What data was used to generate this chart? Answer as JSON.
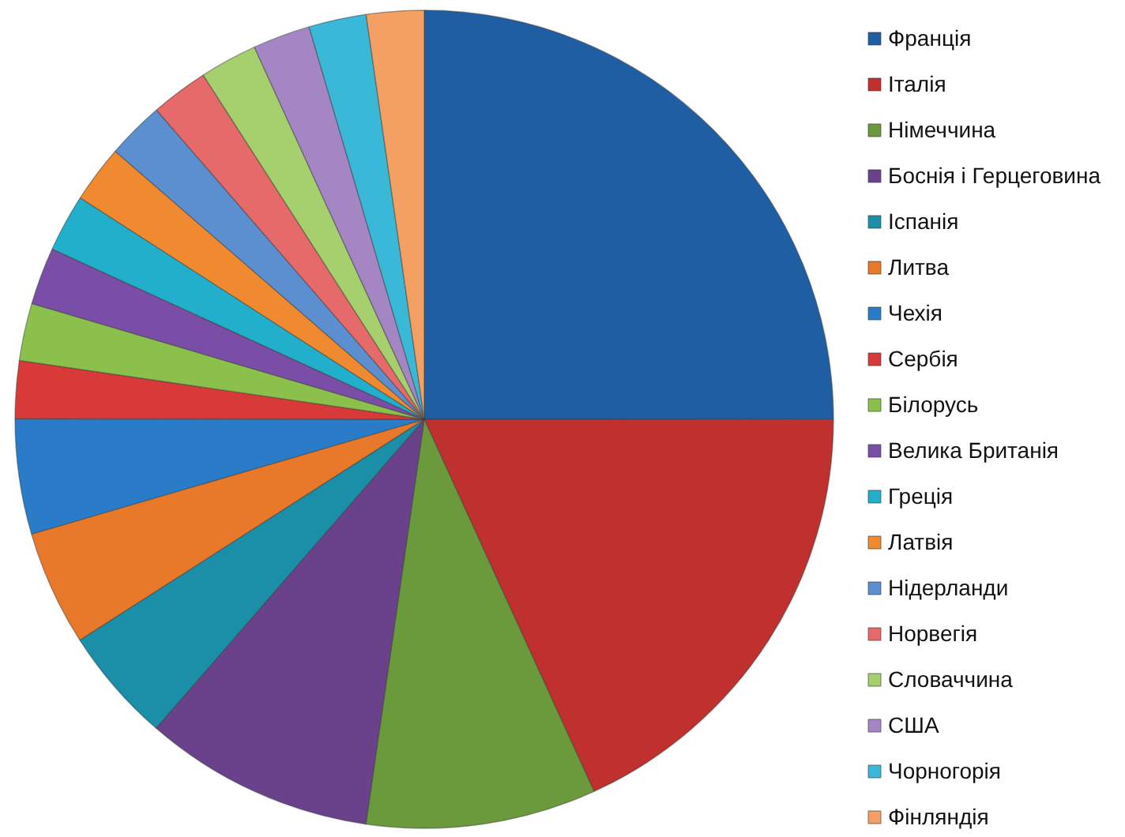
{
  "chart_data": {
    "type": "pie",
    "categories": [
      "Франція",
      "Італія",
      "Німеччина",
      "Боснія і Герцеговина",
      "Іспанія",
      "Литва",
      "Чехія",
      "Сербія",
      "Білорусь",
      "Велика Британія",
      "Греція",
      "Латвія",
      "Нідерланди",
      "Норвегія",
      "Словаччина",
      "США",
      "Чорногорія",
      "Фінляндія"
    ],
    "values": [
      25,
      18.18,
      9.09,
      9.09,
      4.55,
      4.55,
      4.55,
      2.27,
      2.27,
      2.27,
      2.27,
      2.27,
      2.27,
      2.27,
      2.27,
      2.27,
      2.27,
      2.27
    ],
    "colors": [
      "#1f5ea3",
      "#c0302e",
      "#6b9a3c",
      "#6a428c",
      "#1b8fa8",
      "#e8792a",
      "#2a7cc8",
      "#d83a3a",
      "#8cc04c",
      "#7a4ea6",
      "#22afcc",
      "#f08a30",
      "#5b8fd0",
      "#e66a6a",
      "#a6cf6e",
      "#a586c4",
      "#3ab8d8",
      "#f4a062"
    ],
    "legend": "right"
  }
}
